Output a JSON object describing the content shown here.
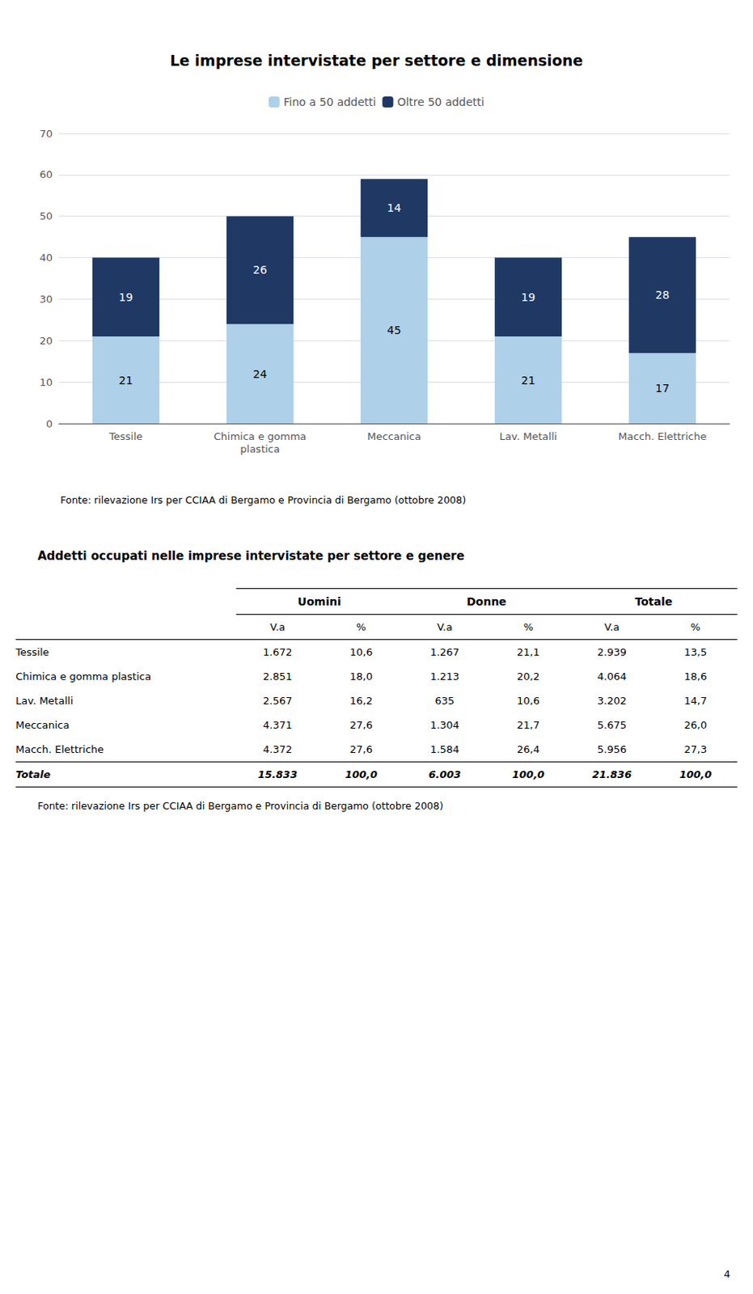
{
  "chart_data": {
    "type": "bar",
    "title": "Le imprese intervistate per settore e dimensione",
    "categories": [
      "Tessile",
      "Chimica e gomma\nplastica",
      "Meccanica",
      "Lav. Metalli",
      "Macch. Elettriche"
    ],
    "series": [
      {
        "name": "Fino a 50 addetti",
        "color": "#aed0e8",
        "values": [
          21,
          24,
          45,
          21,
          17
        ]
      },
      {
        "name": "Oltre 50 addetti",
        "color": "#1f3864",
        "values": [
          19,
          26,
          14,
          19,
          28
        ]
      }
    ],
    "stacked": true,
    "data_labels": true,
    "ylim": [
      0,
      70
    ],
    "yticks": [
      0,
      10,
      20,
      30,
      40,
      50,
      60,
      70
    ],
    "grid": true,
    "legend": "top",
    "annotations": [
      "Fonte: rilevazione Irs per CCIAA di Bergamo e Provincia di Bergamo (ottobre 2008)"
    ]
  },
  "table": {
    "title": "Addetti occupati nelle imprese intervistate per settore e genere",
    "col_groups": [
      "Uomini",
      "Donne",
      "Totale"
    ],
    "col_headers": [
      "V.a",
      "%",
      "V.a",
      "%",
      "V.a",
      "%"
    ],
    "row_labels": [
      "Tessile",
      "Chimica e gomma plastica",
      "Lav. Metalli",
      "Meccanica",
      "Macch. Elettriche",
      "Totale"
    ],
    "row_bold": [
      false,
      false,
      false,
      false,
      false,
      true
    ],
    "rows": [
      [
        "1.672",
        "10,6",
        "1.267",
        "21,1",
        "2.939",
        "13,5"
      ],
      [
        "2.851",
        "18,0",
        "1.213",
        "20,2",
        "4.064",
        "18,6"
      ],
      [
        "2.567",
        "16,2",
        "635",
        "10,6",
        "3.202",
        "14,7"
      ],
      [
        "4.371",
        "27,6",
        "1.304",
        "21,7",
        "5.675",
        "26,0"
      ],
      [
        "4.372",
        "27,6",
        "1.584",
        "26,4",
        "5.956",
        "27,3"
      ],
      [
        "15.833",
        "100,0",
        "6.003",
        "100,0",
        "21.836",
        "100,0"
      ]
    ],
    "source": "Fonte: rilevazione Irs per CCIAA di Bergamo e Provincia di Bergamo (ottobre 2008)"
  },
  "page_number": "4"
}
